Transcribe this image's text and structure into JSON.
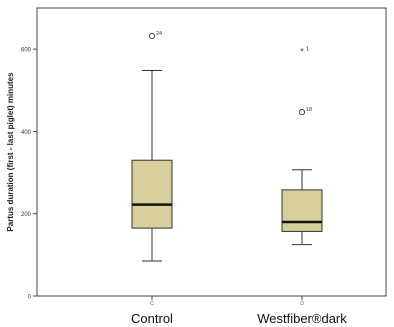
{
  "chart_data": {
    "type": "box",
    "title": "",
    "ylabel": "Partus duration (first - last piglet) minutes",
    "xlabel": "",
    "ylim": [
      0,
      700
    ],
    "yticks": [
      0,
      200,
      400,
      600
    ],
    "grid": false,
    "categories": [
      "Control",
      "Westfiber®dark"
    ],
    "category_codes": [
      "C",
      "D"
    ],
    "boxes": [
      {
        "category": "Control",
        "whisker_low": 85,
        "q1": 165,
        "median": 222,
        "q3": 330,
        "whisker_high": 548,
        "outliers": [
          {
            "value": 632,
            "label": "24",
            "marker": "circle"
          }
        ]
      },
      {
        "category": "Westfiber®dark",
        "whisker_low": 125,
        "q1": 157,
        "median": 180,
        "q3": 258,
        "whisker_high": 307,
        "outliers": [
          {
            "value": 594,
            "label": "1",
            "marker": "star"
          },
          {
            "value": 447,
            "label": "18",
            "marker": "circle"
          }
        ]
      }
    ],
    "colors": {
      "box_fill": "#d6cf9b",
      "box_stroke": "#333333",
      "median": "#111111",
      "plot_background": "#ffffff"
    }
  }
}
